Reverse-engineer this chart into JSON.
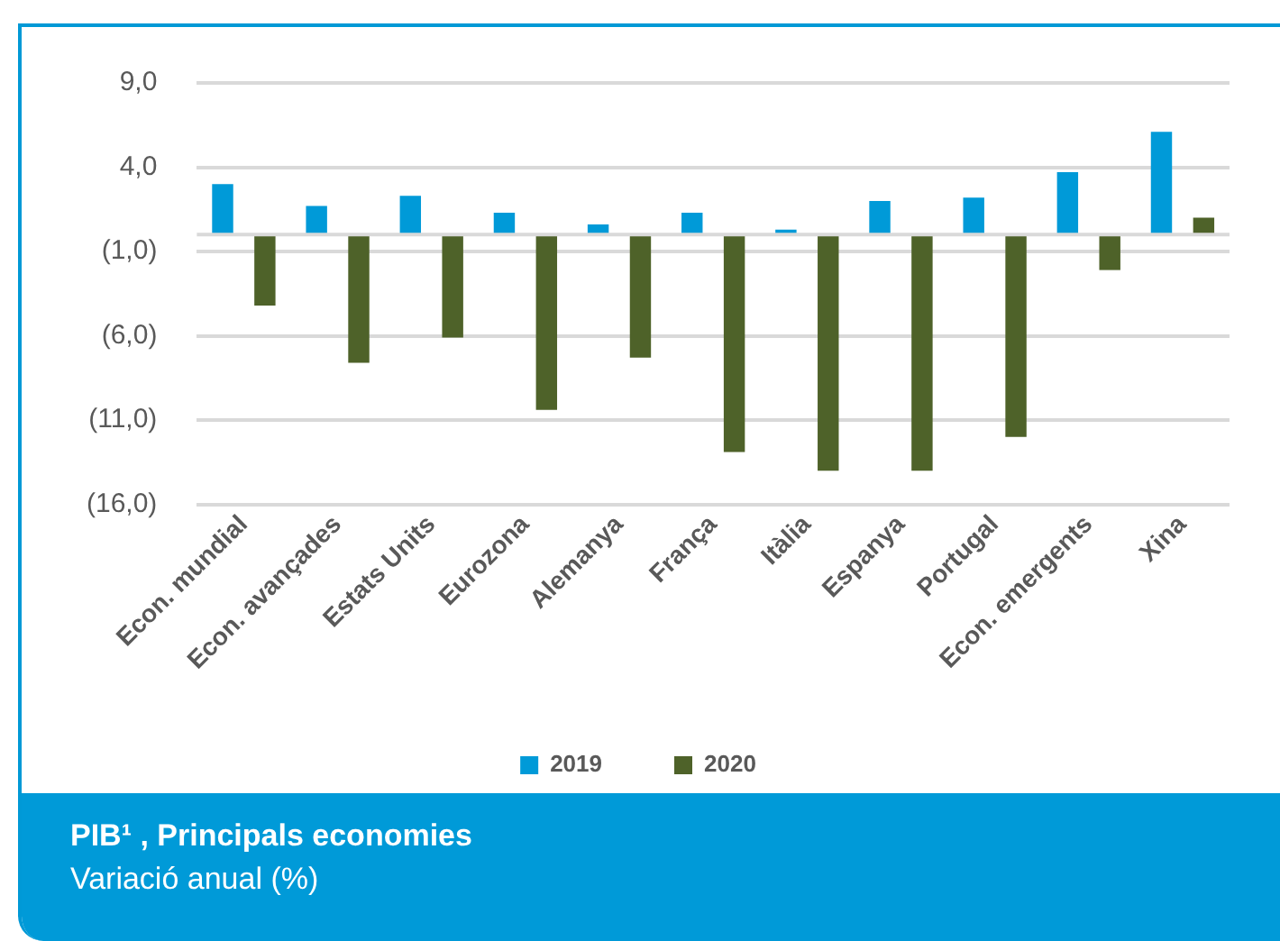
{
  "chart_data": {
    "type": "bar",
    "title": "PIB¹ , Principals economies",
    "subtitle": "Variació anual (%)",
    "categories": [
      "Econ. mundial",
      "Econ. avançades",
      "Estats Units",
      "Eurozona",
      "Alemanya",
      "França",
      "Itàlia",
      "Espanya",
      "Portugal",
      "Econ. emergents",
      "Xina"
    ],
    "series": [
      {
        "name": "2019",
        "color": "#009ad8",
        "values": [
          3.0,
          1.7,
          2.3,
          1.3,
          0.6,
          1.3,
          0.3,
          2.0,
          2.2,
          3.7,
          6.1
        ]
      },
      {
        "name": "2020",
        "color": "#4e6229",
        "values": [
          -4.2,
          -7.6,
          -6.1,
          -10.4,
          -7.3,
          -12.9,
          -14.0,
          -14.0,
          -12.0,
          -2.1,
          1.0
        ]
      }
    ],
    "ylim": [
      -16,
      9
    ],
    "yticks": [
      {
        "value": 9,
        "label": "9,0"
      },
      {
        "value": 4,
        "label": "4,0"
      },
      {
        "value": -1,
        "label": "(1,0)"
      },
      {
        "value": -6,
        "label": "(6,0)"
      },
      {
        "value": -11,
        "label": "(11,0)"
      },
      {
        "value": -16,
        "label": "(16,0)"
      }
    ],
    "grid": "y",
    "legend": "bottom"
  }
}
